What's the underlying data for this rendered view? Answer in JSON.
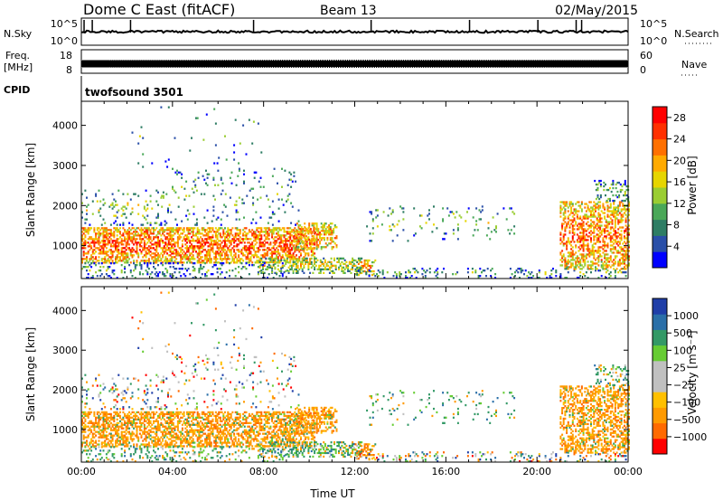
{
  "header": {
    "site": "Dome C East (fitACF)",
    "beam": "Beam 13",
    "date": "02/May/2015"
  },
  "top_panels": {
    "nsky_label": "N.Sky",
    "nsky_ticks": [
      "10^5",
      "10^0"
    ],
    "nsearch_label": "N.Search",
    "nsearch_ticks": [
      "10^5",
      "10^0"
    ],
    "freq_label": [
      "Freq.",
      "[MHz]"
    ],
    "freq_ticks": [
      "18",
      "8"
    ],
    "nave_label": "Nave",
    "nave_ticks": [
      "60",
      "0"
    ],
    "cpid_label": "CPID",
    "cpid_value": "twofsound 3501"
  },
  "colors": {
    "power": [
      "#0000ff",
      "#2a4fa8",
      "#2e7d64",
      "#4aa858",
      "#9acd32",
      "#e6d500",
      "#ffaa00",
      "#ff7000",
      "#ff3000",
      "#ff0000"
    ],
    "velocity": [
      "#ff0000",
      "#ff6a00",
      "#ff9a00",
      "#ffc000",
      "#c0c0c0",
      "#c0c0c0",
      "#66cc33",
      "#339966",
      "#2a6fa8",
      "#1f3ea8"
    ]
  },
  "chart_data": [
    {
      "type": "heatmap",
      "name": "power",
      "xlabel": "",
      "ylabel": "Slant Range [km]",
      "xlim": [
        "00:00",
        "24:00"
      ],
      "ylim": [
        180,
        4600
      ],
      "yticks": [
        "1000",
        "2000",
        "3000",
        "4000"
      ],
      "colorbar": {
        "label": "Power [dB]",
        "ticks": [
          "4",
          "8",
          "12",
          "16",
          "20",
          "24",
          "28"
        ],
        "range": [
          0,
          30
        ]
      }
    },
    {
      "type": "heatmap",
      "name": "velocity",
      "xlabel": "Time UT",
      "ylabel": "Slant Range [km]",
      "xticks": [
        "00:00",
        "04:00",
        "08:00",
        "12:00",
        "16:00",
        "20:00",
        "00:00"
      ],
      "xlim": [
        "00:00",
        "24:00"
      ],
      "ylim": [
        180,
        4600
      ],
      "yticks": [
        "1000",
        "2000",
        "3000",
        "4000"
      ],
      "colorbar": {
        "label": "Velocity [m s⁻¹]",
        "ticks": [
          "1000",
          "500",
          "100",
          "25",
          "−25",
          "−100",
          "−500",
          "−1000"
        ]
      }
    }
  ]
}
